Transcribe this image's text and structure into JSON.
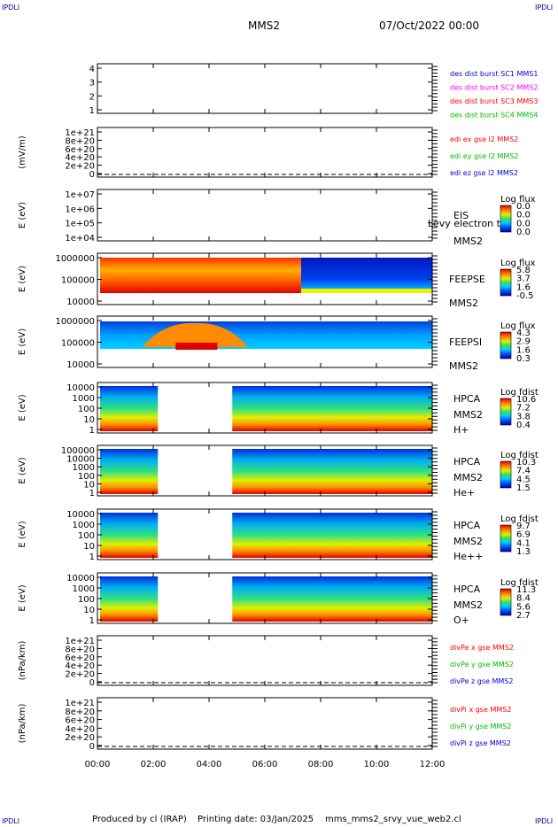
{
  "header": {
    "corner_tl": "IPDLI",
    "corner_tr": "IPDLI",
    "corner_bl": "IPDLI",
    "corner_br": "IPDLI",
    "spacecraft": "MMS2",
    "datetime": "07/Oct/2022 00:00"
  },
  "footer": {
    "produced": "Produced by cl (IRAP)",
    "printing": "Printing date: 03/Jan/2025",
    "file": "mms_mms2_srvy_vue_web2.cl"
  },
  "chart_data": {
    "type": "multi-panel time series / spectrogram",
    "x_ticks": [
      "00:00",
      "02:00",
      "04:00",
      "06:00",
      "08:00",
      "10:00",
      "12:00"
    ],
    "xlim_hours": [
      0,
      12
    ],
    "panels": [
      {
        "id": "spacecraft",
        "type": "line",
        "ylabel": "",
        "y_ticks": [
          "4",
          "3",
          "2",
          "1"
        ],
        "ylim": [
          0.5,
          4.5
        ],
        "legend": [
          {
            "text": "des dist burst SC1 MMS1",
            "color": "#0000cc"
          },
          {
            "text": "des dist burst SC2 MMS2",
            "color": "#ff00ff"
          },
          {
            "text": "des dist burst SC3 MMS3",
            "color": "#ff0000"
          },
          {
            "text": "des dist burst SC4 MMS4",
            "color": "#00bb00"
          }
        ]
      },
      {
        "id": "edi",
        "type": "line",
        "ylabel": "(mV/m)",
        "y_ticks": [
          "1e+21",
          "8e+20",
          "6e+20",
          "4e+20",
          "2e+20",
          "0"
        ],
        "ylim": [
          0,
          1.1e+21
        ],
        "zero_line": true,
        "legend": [
          {
            "text": "edi ex gse l2 MMS2",
            "color": "#ff0000"
          },
          {
            "text": "edi ey gse l2 MMS2",
            "color": "#00bb00"
          },
          {
            "text": "edi ez gse l2 MMS2",
            "color": "#0000cc"
          }
        ]
      },
      {
        "id": "eis",
        "type": "heatmap",
        "ylabel": "E (eV)",
        "y_ticks": [
          "1e+07",
          "1e+06",
          "1e+05",
          "1e+04"
        ],
        "ylim": [
          10000,
          10000000
        ],
        "yscale": "log",
        "labels": [
          "EIS",
          "MMS2"
        ],
        "overlay_text": "Levy electron to",
        "colorbar": {
          "title": "Log flux",
          "ticks": [
            "0.0",
            "0.0",
            "0.0",
            "0.0"
          ]
        },
        "data": "empty"
      },
      {
        "id": "feepse",
        "type": "heatmap",
        "ylabel": "E (eV)",
        "y_ticks": [
          "1000000",
          "100000",
          "10000"
        ],
        "ylim": [
          10000,
          1000000
        ],
        "yscale": "log",
        "labels": [
          "FEEPSE",
          "MMS2"
        ],
        "colorbar": {
          "title": "Log flux",
          "ticks": [
            "5.8",
            "3.7",
            "1.6",
            "-0.5"
          ]
        },
        "data": "high flux (red/yellow) from 00:00 to about 07:30, then low flux (blue) to 12:00"
      },
      {
        "id": "feepsi",
        "type": "heatmap",
        "ylabel": "E (eV)",
        "y_ticks": [
          "1000000",
          "100000",
          "10000"
        ],
        "ylim": [
          10000,
          1000000
        ],
        "yscale": "log",
        "labels": [
          "FEEPSI",
          "MMS2"
        ],
        "colorbar": {
          "title": "Log flux",
          "ticks": [
            "4.3",
            "2.9",
            "1.6",
            "0.3"
          ]
        },
        "data": "enhanced flux 02:00-05:00, band mostly blue elsewhere"
      },
      {
        "id": "hpca_h",
        "type": "heatmap",
        "ylabel": "E (eV)",
        "y_ticks": [
          "10000",
          "1000",
          "100",
          "10",
          "1"
        ],
        "ylim": [
          1,
          30000
        ],
        "yscale": "log",
        "labels": [
          "HPCA",
          "MMS2",
          "H+"
        ],
        "colorbar": {
          "title": "Log fdist",
          "ticks": [
            "10.6",
            "7.2",
            "3.8",
            "0.4"
          ]
        },
        "gap": [
          "02:10",
          "04:50"
        ]
      },
      {
        "id": "hpca_he",
        "type": "heatmap",
        "ylabel": "E (eV)",
        "y_ticks": [
          "100000",
          "10000",
          "1000",
          "100",
          "10",
          "1"
        ],
        "ylim": [
          1,
          100000
        ],
        "yscale": "log",
        "labels": [
          "HPCA",
          "MMS2",
          "He+"
        ],
        "colorbar": {
          "title": "Log fdist",
          "ticks": [
            "10.3",
            "7.4",
            "4.5",
            "1.5"
          ]
        },
        "gap": [
          "02:10",
          "04:50"
        ]
      },
      {
        "id": "hpca_hepp",
        "type": "heatmap",
        "ylabel": "E (eV)",
        "y_ticks": [
          "10000",
          "1000",
          "100",
          "10",
          "1"
        ],
        "ylim": [
          1,
          30000
        ],
        "yscale": "log",
        "labels": [
          "HPCA",
          "MMS2",
          "He++"
        ],
        "colorbar": {
          "title": "Log fdist",
          "ticks": [
            "9.7",
            "6.9",
            "4.1",
            "1.3"
          ]
        },
        "gap": [
          "02:10",
          "04:50"
        ]
      },
      {
        "id": "hpca_o",
        "type": "heatmap",
        "ylabel": "E (eV)",
        "y_ticks": [
          "10000",
          "1000",
          "100",
          "10",
          "1"
        ],
        "ylim": [
          1,
          30000
        ],
        "yscale": "log",
        "labels": [
          "HPCA",
          "MMS2",
          "O+"
        ],
        "colorbar": {
          "title": "Log fdist",
          "ticks": [
            "11.3",
            "8.4",
            "5.6",
            "2.7"
          ]
        },
        "gap": [
          "02:10",
          "04:50"
        ]
      },
      {
        "id": "divpe",
        "type": "line",
        "ylabel": "(nPa/km)",
        "y_ticks": [
          "1e+21",
          "8e+20",
          "6e+20",
          "4e+20",
          "2e+20",
          "0"
        ],
        "ylim": [
          0,
          1.1e+21
        ],
        "zero_line": true,
        "legend": [
          {
            "text": "divPe x gse MMS2",
            "color": "#ff0000"
          },
          {
            "text": "divPe y gse MMS2",
            "color": "#00bb00"
          },
          {
            "text": "divPe z gse MMS2",
            "color": "#0000cc"
          }
        ]
      },
      {
        "id": "divpi",
        "type": "line",
        "ylabel": "(nPa/km)",
        "y_ticks": [
          "1e+21",
          "8e+20",
          "6e+20",
          "4e+20",
          "2e+20",
          "0"
        ],
        "ylim": [
          0,
          1.1e+21
        ],
        "zero_line": true,
        "legend": [
          {
            "text": "divPi x gse MMS2",
            "color": "#ff0000"
          },
          {
            "text": "divPi y gse MMS2",
            "color": "#00bb00"
          },
          {
            "text": "divPi z gse MMS2",
            "color": "#0000cc"
          }
        ]
      }
    ]
  }
}
